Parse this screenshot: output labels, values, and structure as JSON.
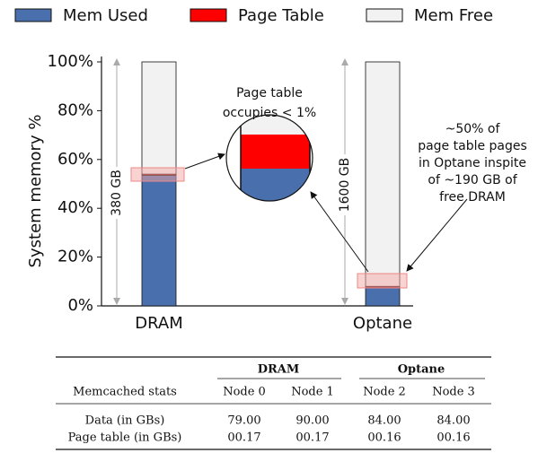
{
  "chart_data": {
    "type": "stacked_bar",
    "y_label": "System memory %",
    "categories": [
      "DRAM",
      "Optane"
    ],
    "series": [
      {
        "name": "Mem Used",
        "color": "#4a6fad",
        "values": [
          53.5,
          7.5
        ]
      },
      {
        "name": "Page Table",
        "color": "#ff0000",
        "values": [
          0.5,
          0.5
        ]
      },
      {
        "name": "Mem Free",
        "color": "#f2f2f2",
        "values": [
          46,
          92
        ]
      }
    ],
    "ylim": [
      0,
      100
    ],
    "yticks": [
      {
        "value": 0,
        "label": "0%"
      },
      {
        "value": 20,
        "label": "20%"
      },
      {
        "value": 40,
        "label": "40%"
      },
      {
        "value": 60,
        "label": "60%"
      },
      {
        "value": 80,
        "label": "80%"
      },
      {
        "value": 100,
        "label": "100%"
      }
    ],
    "legend": "top",
    "annotations": [
      [
        "380 GB"
      ],
      [
        "1600 GB"
      ],
      [
        "Page table",
        "occupies < 1%"
      ],
      [
        "~50% of",
        "page table pages",
        "in Optane inspite",
        "of ~190 GB of",
        "free DRAM"
      ]
    ]
  },
  "table": {
    "groups": [
      "DRAM",
      "Optane"
    ],
    "header": [
      "Memcached stats",
      "Node 0",
      "Node 1",
      "Node 2",
      "Node 3"
    ],
    "rows": [
      [
        "Data (in GBs)",
        "79.00",
        "90.00",
        "84.00",
        "84.00"
      ],
      [
        "Page table (in GBs)",
        "00.17",
        "00.17",
        "00.16",
        "00.16"
      ]
    ]
  }
}
